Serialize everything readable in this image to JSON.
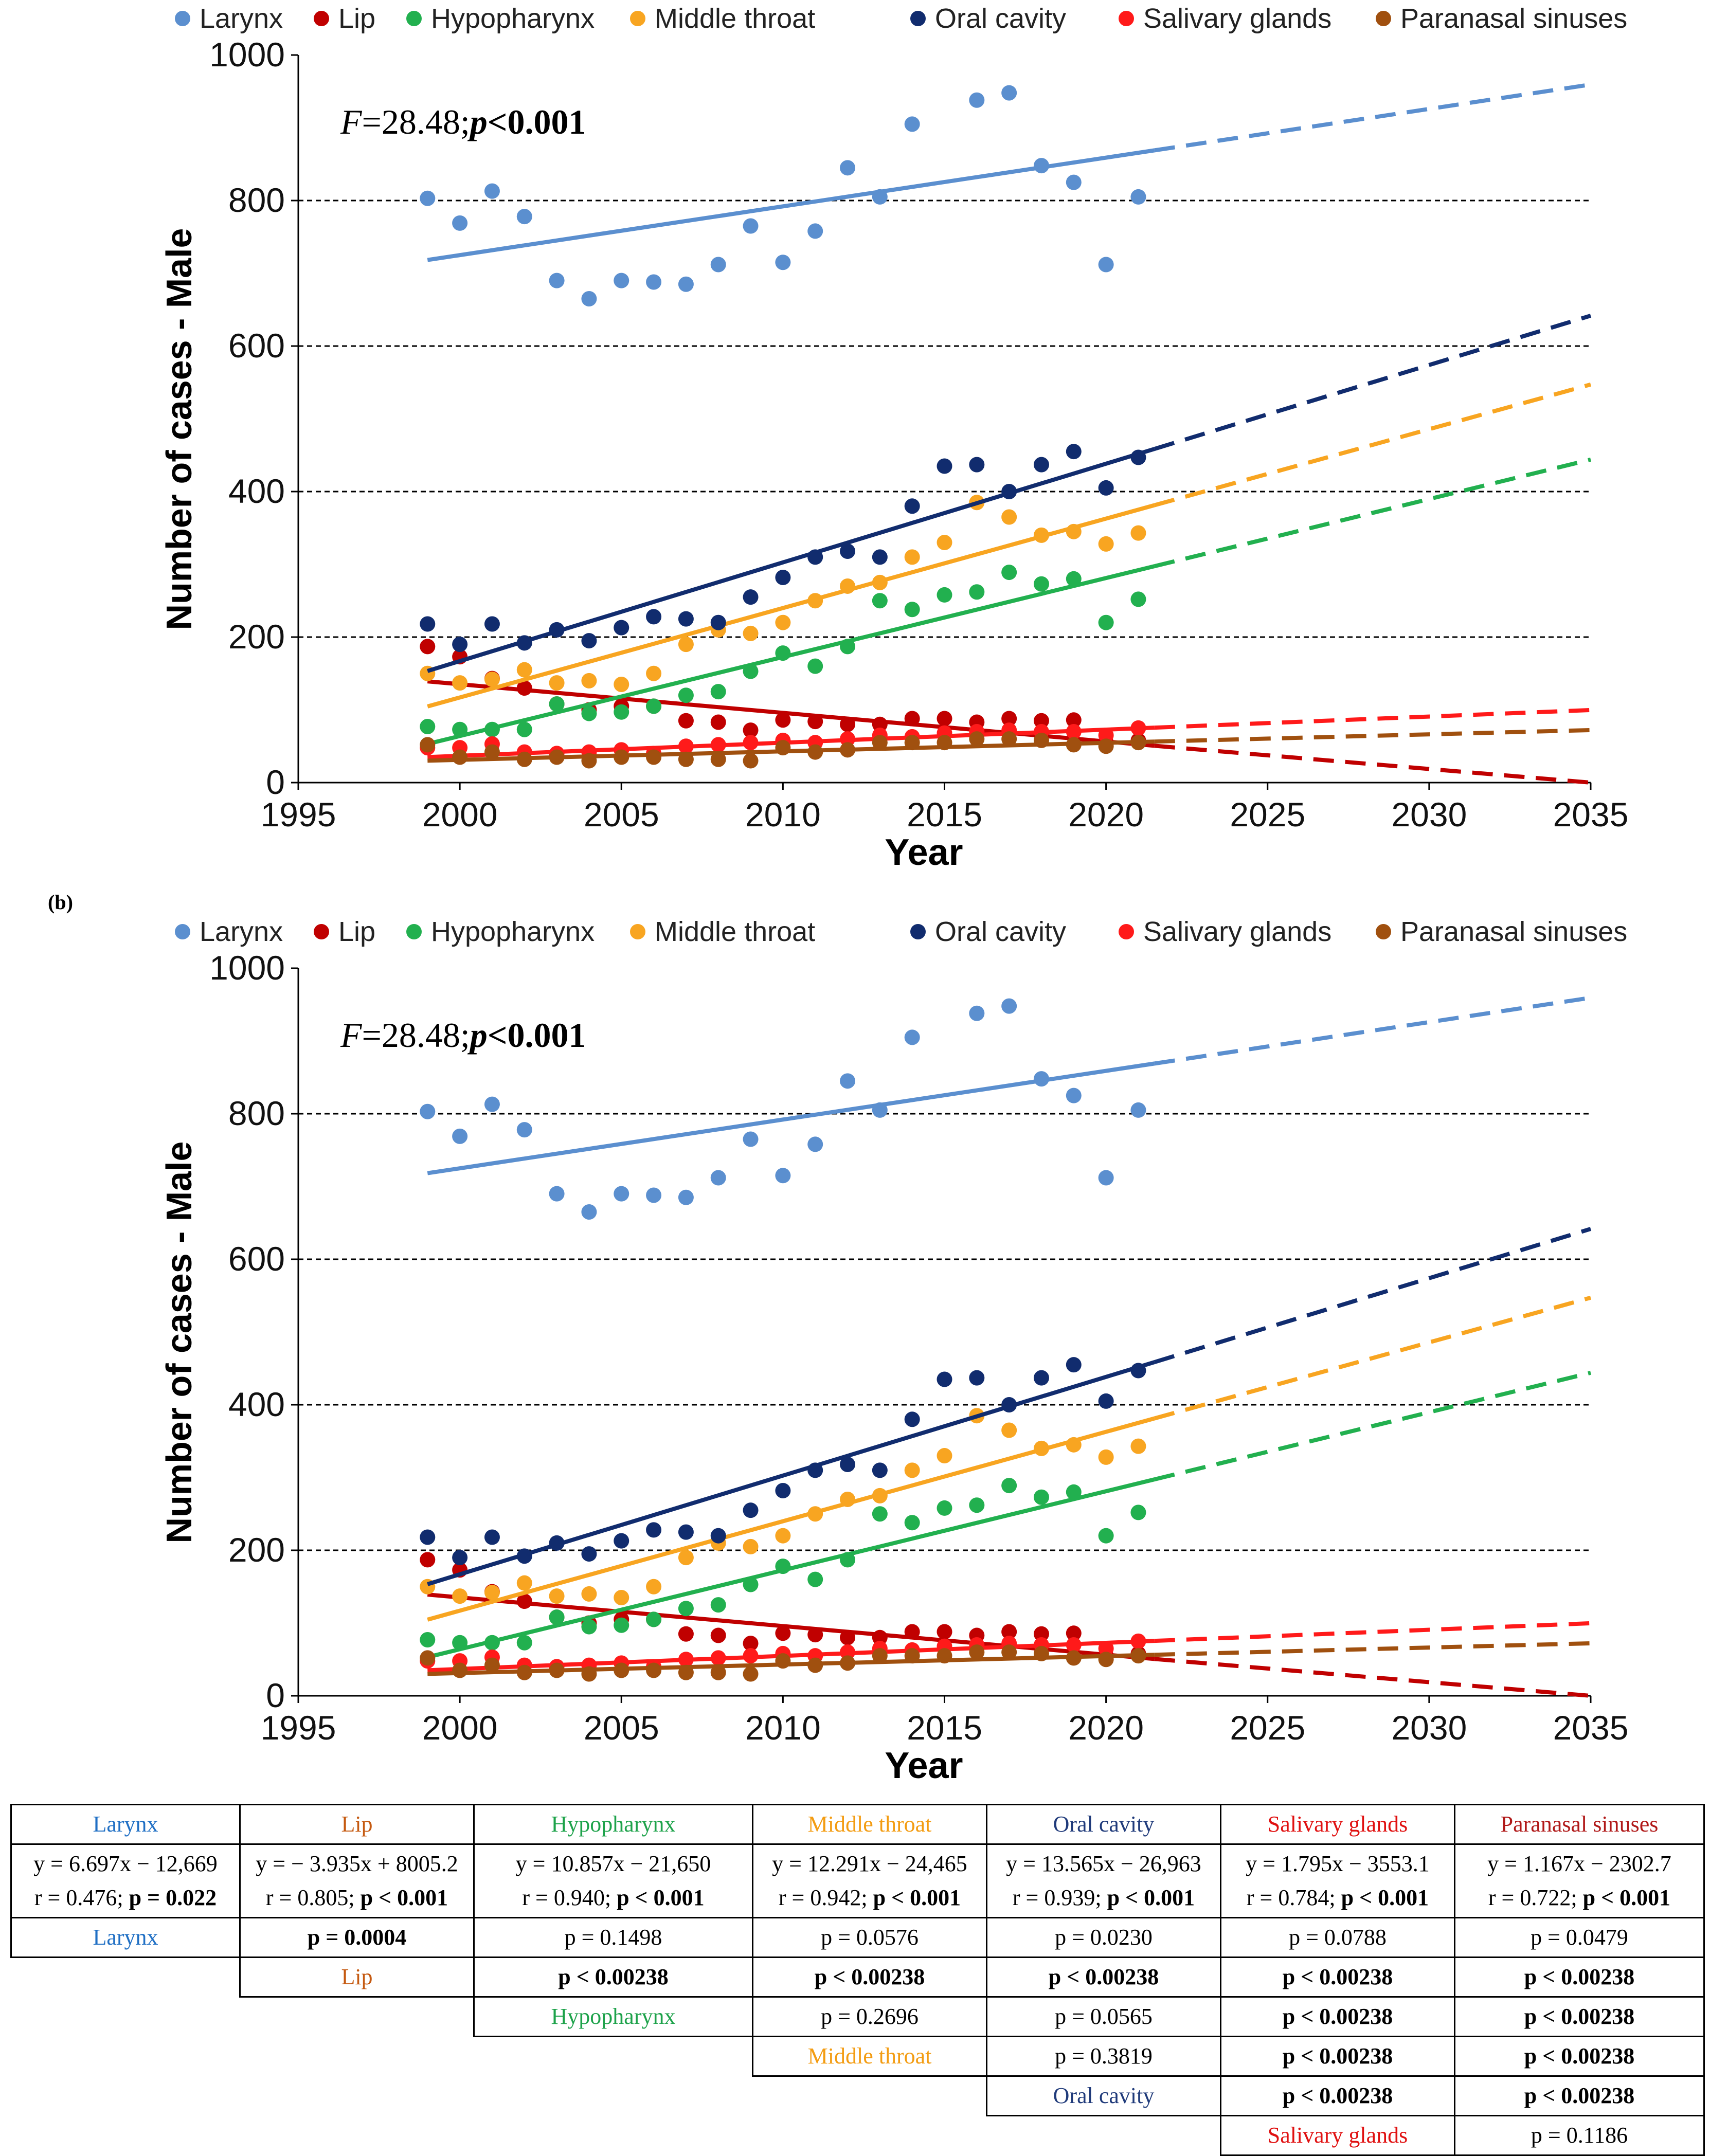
{
  "panel_label": "(b)",
  "chart_data": [
    {
      "type": "scatter",
      "title": "",
      "xlabel": "Year",
      "ylabel": "Number of cases - Male",
      "xlim": [
        1995,
        2035
      ],
      "ylim": [
        0,
        1000
      ],
      "x_ticks": [
        "1995",
        "2000",
        "2005",
        "2010",
        "2015",
        "2020",
        "2025",
        "2030",
        "2035"
      ],
      "y_ticks": [
        "0",
        "200",
        "400",
        "600",
        "800",
        "1000"
      ],
      "grid": "horizontal dashed",
      "legend_position": "top",
      "annotation": {
        "f_part": "F",
        "f_val": "=28.48;",
        "p_part": "p",
        "p_val": "<0.001"
      },
      "x": [
        1999,
        2000,
        2001,
        2002,
        2003,
        2004,
        2005,
        2006,
        2007,
        2008,
        2009,
        2010,
        2011,
        2012,
        2013,
        2014,
        2015,
        2016,
        2017,
        2018,
        2019,
        2020,
        2021
      ],
      "series": [
        {
          "name": "Larynx",
          "color": "#5B8FCF",
          "trend": [
            6.697,
            -12669
          ],
          "values": [
            803,
            769,
            813,
            778,
            690,
            665,
            690,
            688,
            685,
            712,
            765,
            715,
            758,
            845,
            805,
            905,
            0,
            938,
            948,
            848,
            825,
            712,
            805
          ],
          "skip": [
            16
          ]
        },
        {
          "name": "Lip",
          "color": "#C00000",
          "trend": [
            -3.935,
            8005.2
          ],
          "values": [
            187,
            173,
            143,
            130,
            108,
            100,
            105,
            105,
            85,
            83,
            72,
            86,
            84,
            80,
            80,
            88,
            88,
            83,
            88,
            85,
            86,
            55,
            58
          ]
        },
        {
          "name": "Hypopharynx",
          "color": "#22B04F",
          "trend": [
            10.857,
            -21650
          ],
          "values": [
            77,
            73,
            73,
            73,
            108,
            95,
            97,
            105,
            120,
            125,
            153,
            178,
            160,
            187,
            250,
            238,
            258,
            262,
            289,
            273,
            280,
            220,
            252
          ]
        },
        {
          "name": "Middle throat",
          "color": "#F8A521",
          "trend": [
            12.291,
            -24465
          ],
          "values": [
            150,
            137,
            142,
            155,
            137,
            140,
            135,
            150,
            190,
            210,
            205,
            220,
            250,
            270,
            275,
            310,
            330,
            385,
            365,
            340,
            345,
            328,
            343
          ]
        },
        {
          "name": "Oral cavity",
          "color": "#112C6E",
          "trend": [
            13.565,
            -26963
          ],
          "values": [
            218,
            190,
            218,
            192,
            210,
            195,
            213,
            228,
            225,
            220,
            255,
            282,
            310,
            318,
            310,
            380,
            435,
            437,
            400,
            437,
            455,
            405,
            447
          ]
        },
        {
          "name": "Salivary glands",
          "color": "#FF1A1A",
          "trend": [
            1.795,
            -3553.1
          ],
          "values": [
            48,
            48,
            53,
            42,
            40,
            42,
            45,
            40,
            50,
            52,
            55,
            58,
            55,
            60,
            65,
            63,
            68,
            70,
            72,
            70,
            70,
            65,
            75
          ]
        },
        {
          "name": "Paranasal sinuses",
          "color": "#A0500F",
          "trend": [
            1.167,
            -2302.7
          ],
          "values": [
            52,
            35,
            42,
            32,
            35,
            30,
            35,
            35,
            32,
            32,
            30,
            48,
            42,
            45,
            55,
            55,
            55,
            60,
            60,
            58,
            52,
            50,
            55
          ]
        }
      ]
    },
    {
      "type": "scatter",
      "title": "",
      "xlabel": "Year",
      "ylabel": "Number of cases - Male",
      "xlim": [
        1995,
        2035
      ],
      "ylim": [
        0,
        1000
      ],
      "x_ticks": [
        "1995",
        "2000",
        "2005",
        "2010",
        "2015",
        "2020",
        "2025",
        "2030",
        "2035"
      ],
      "y_ticks": [
        "0",
        "200",
        "400",
        "600",
        "800",
        "1000"
      ],
      "grid": "horizontal dashed",
      "legend_position": "top",
      "annotation": {
        "f_part": "F",
        "f_val": "=28.48;",
        "p_part": "p",
        "p_val": "<0.001"
      },
      "x": [
        1999,
        2000,
        2001,
        2002,
        2003,
        2004,
        2005,
        2006,
        2007,
        2008,
        2009,
        2010,
        2011,
        2012,
        2013,
        2014,
        2015,
        2016,
        2017,
        2018,
        2019,
        2020,
        2021
      ],
      "series": [
        {
          "name": "Larynx",
          "color": "#5B8FCF",
          "trend": [
            6.697,
            -12669
          ],
          "values": [
            803,
            769,
            813,
            778,
            690,
            665,
            690,
            688,
            685,
            712,
            765,
            715,
            758,
            845,
            805,
            905,
            0,
            938,
            948,
            848,
            825,
            712,
            805
          ],
          "skip": [
            16
          ]
        },
        {
          "name": "Lip",
          "color": "#C00000",
          "trend": [
            -3.935,
            8005.2
          ],
          "values": [
            187,
            173,
            143,
            130,
            108,
            100,
            105,
            105,
            85,
            83,
            72,
            86,
            84,
            80,
            80,
            88,
            88,
            83,
            88,
            85,
            86,
            55,
            58
          ]
        },
        {
          "name": "Hypopharynx",
          "color": "#22B04F",
          "trend": [
            10.857,
            -21650
          ],
          "values": [
            77,
            73,
            73,
            73,
            108,
            95,
            97,
            105,
            120,
            125,
            153,
            178,
            160,
            187,
            250,
            238,
            258,
            262,
            289,
            273,
            280,
            220,
            252
          ]
        },
        {
          "name": "Middle throat",
          "color": "#F8A521",
          "trend": [
            12.291,
            -24465
          ],
          "values": [
            150,
            137,
            142,
            155,
            137,
            140,
            135,
            150,
            190,
            210,
            205,
            220,
            250,
            270,
            275,
            310,
            330,
            385,
            365,
            340,
            345,
            328,
            343
          ]
        },
        {
          "name": "Oral cavity",
          "color": "#112C6E",
          "trend": [
            13.565,
            -26963
          ],
          "values": [
            218,
            190,
            218,
            192,
            210,
            195,
            213,
            228,
            225,
            220,
            255,
            282,
            310,
            318,
            310,
            380,
            435,
            437,
            400,
            437,
            455,
            405,
            447
          ]
        },
        {
          "name": "Salivary glands",
          "color": "#FF1A1A",
          "trend": [
            1.795,
            -3553.1
          ],
          "values": [
            48,
            48,
            53,
            42,
            40,
            42,
            45,
            40,
            50,
            52,
            55,
            58,
            55,
            60,
            65,
            63,
            68,
            70,
            72,
            70,
            70,
            65,
            75
          ]
        },
        {
          "name": "Paranasal sinuses",
          "color": "#A0500F",
          "trend": [
            1.167,
            -2302.7
          ],
          "values": [
            52,
            35,
            42,
            32,
            35,
            30,
            35,
            35,
            32,
            32,
            30,
            48,
            42,
            45,
            55,
            55,
            55,
            60,
            60,
            58,
            52,
            50,
            55
          ]
        }
      ]
    }
  ],
  "table": {
    "header": [
      {
        "label": "Larynx",
        "color": "#1F6FC4"
      },
      {
        "label": "Lip",
        "color": "#C55A11"
      },
      {
        "label": "Hypopharynx",
        "color": "#1DA24A"
      },
      {
        "label": "Middle throat",
        "color": "#F39C12"
      },
      {
        "label": "Oral cavity",
        "color": "#1F3A7A"
      },
      {
        "label": "Salivary glands",
        "color": "#E01010"
      },
      {
        "label": "Paranasal sinuses",
        "color": "#B01818"
      }
    ],
    "equations": [
      {
        "eq": "y = 6.697x − 12,669",
        "r": "r = 0.476; ",
        "p": "p = 0.022"
      },
      {
        "eq": "y = − 3.935x + 8005.2",
        "r": "r = 0.805; ",
        "p": "p < 0.001"
      },
      {
        "eq": "y = 10.857x − 21,650",
        "r": "r = 0.940; ",
        "p": "p < 0.001"
      },
      {
        "eq": "y = 12.291x − 24,465",
        "r": "r = 0.942; ",
        "p": "p < 0.001"
      },
      {
        "eq": "y = 13.565x − 26,963",
        "r": "r = 0.939; ",
        "p": "p < 0.001"
      },
      {
        "eq": "y = 1.795x − 3553.1",
        "r": "r = 0.784; ",
        "p": "p < 0.001"
      },
      {
        "eq": "y = 1.167x − 2302.7",
        "r": "r = 0.722; ",
        "p": "p < 0.001"
      }
    ],
    "comparisons": [
      {
        "label": "Larynx",
        "values": [
          "p = 0.0004",
          "p = 0.1498",
          "p = 0.0576",
          "p = 0.0230",
          "p = 0.0788",
          "p = 0.0479"
        ],
        "bold": [
          true,
          false,
          false,
          false,
          false,
          false
        ]
      },
      {
        "label": "Lip",
        "values": [
          "p < 0.00238",
          "p < 0.00238",
          "p < 0.00238",
          "p < 0.00238",
          "p < 0.00238"
        ],
        "bold": [
          true,
          true,
          true,
          true,
          true
        ]
      },
      {
        "label": "Hypopharynx",
        "values": [
          "p = 0.2696",
          "p = 0.0565",
          "p < 0.00238",
          "p < 0.00238"
        ],
        "bold": [
          false,
          false,
          true,
          true
        ]
      },
      {
        "label": "Middle throat",
        "values": [
          "p = 0.3819",
          "p < 0.00238",
          "p < 0.00238"
        ],
        "bold": [
          false,
          true,
          true
        ]
      },
      {
        "label": "Oral cavity",
        "values": [
          "p < 0.00238",
          "p < 0.00238"
        ],
        "bold": [
          true,
          true
        ]
      },
      {
        "label": "Salivary glands",
        "values": [
          "p = 0.1186"
        ],
        "bold": [
          false
        ]
      }
    ]
  }
}
